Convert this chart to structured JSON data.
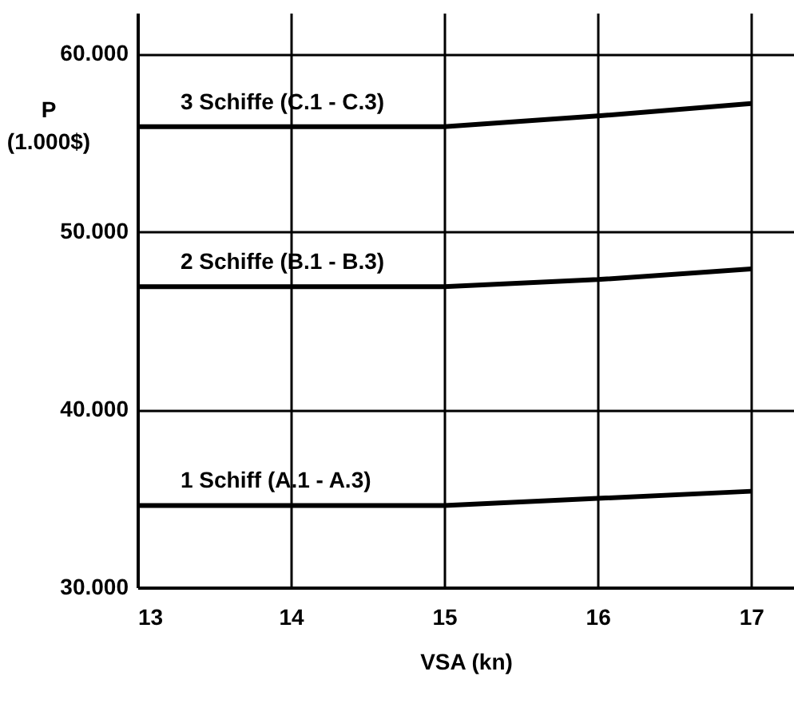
{
  "chart_data": {
    "type": "line",
    "xlabel": "VSA (kn)",
    "ylabel": "P (1.000$)",
    "x": [
      13,
      14,
      15,
      16,
      17
    ],
    "series": [
      {
        "name": "3 Schiffe (C.1 - C.3)",
        "color": "#000000",
        "values": [
          55900,
          55900,
          55900,
          56500,
          57200
        ]
      },
      {
        "name": "2 Schiffe (B.1 - B.3)",
        "color": "#000000",
        "values": [
          46900,
          46900,
          46900,
          47300,
          47900
        ]
      },
      {
        "name": "1 Schiff (A.1 - A.3)",
        "color": "#000000",
        "values": [
          34600,
          34600,
          34600,
          35000,
          35400
        ]
      }
    ],
    "xlim": [
      13,
      17.28
    ],
    "xticks": [
      13,
      14,
      15,
      16,
      17
    ],
    "ylim": [
      30000,
      62300
    ],
    "yticks": [
      {
        "value": 30000,
        "label": "30.000"
      },
      {
        "value": 40000,
        "label": "40.000"
      },
      {
        "value": 50000,
        "label": "50.000"
      },
      {
        "value": 60000,
        "label": "60.000"
      }
    ],
    "grid": true,
    "legend": false,
    "marker": "none",
    "line_style": "solid"
  }
}
